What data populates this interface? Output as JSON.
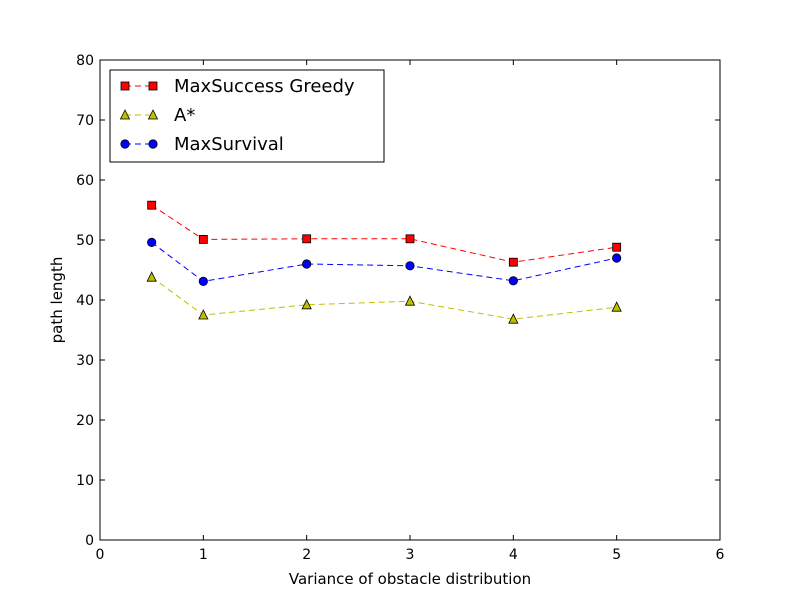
{
  "chart_data": {
    "type": "line",
    "title": "",
    "xlabel": "Variance of obstacle distribution",
    "ylabel": "path length",
    "xlim": [
      0,
      6
    ],
    "ylim": [
      0,
      80
    ],
    "xticks": [
      0,
      1,
      2,
      3,
      4,
      5,
      6
    ],
    "yticks": [
      0,
      10,
      20,
      30,
      40,
      50,
      60,
      70,
      80
    ],
    "x": [
      0.5,
      1,
      2,
      3,
      4,
      5
    ],
    "grid": false,
    "legend_position": "top-left",
    "series": [
      {
        "name": "MaxSuccess Greedy",
        "values": [
          55.8,
          50.1,
          50.2,
          50.2,
          46.3,
          48.8
        ],
        "color": "#ff0000",
        "marker": "square",
        "line_style": "dashed"
      },
      {
        "name": "A*",
        "values": [
          43.8,
          37.5,
          39.2,
          39.8,
          36.8,
          38.8
        ],
        "color": "#bfbf00",
        "marker": "triangle",
        "line_style": "dashed"
      },
      {
        "name": "MaxSurvival",
        "values": [
          49.6,
          43.1,
          46.0,
          45.7,
          43.2,
          47.0
        ],
        "color": "#0000ff",
        "marker": "circle",
        "line_style": "dashed"
      }
    ]
  }
}
